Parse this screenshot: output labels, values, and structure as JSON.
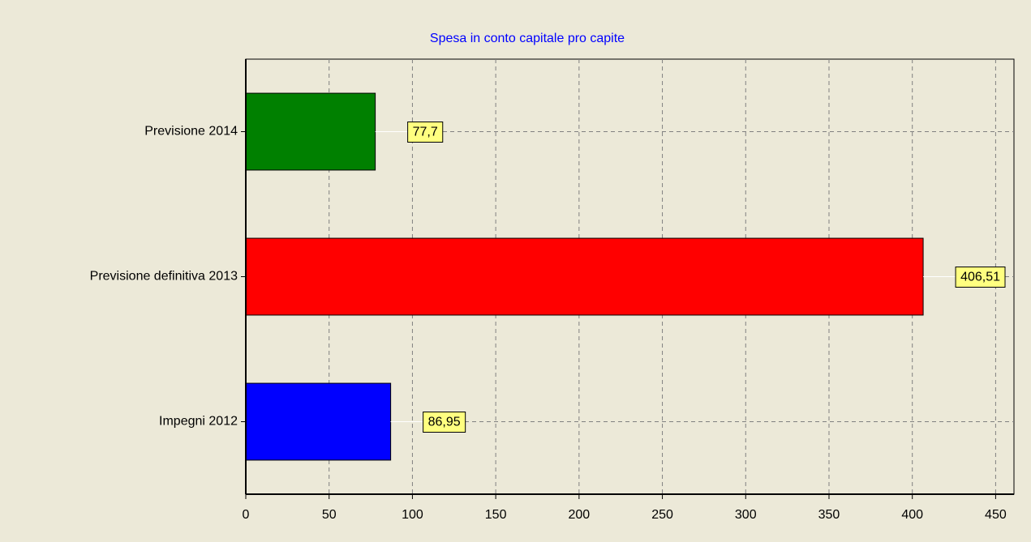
{
  "chart_data": {
    "type": "barh",
    "title": "Spesa in conto capitale pro capite",
    "categories": [
      "Previsione 2014",
      "Previsione definitiva 2013",
      "Impegni 2012"
    ],
    "values": [
      77.7,
      406.51,
      86.95
    ],
    "value_labels": [
      "77,7",
      "406,51",
      "86,95"
    ],
    "colors": [
      "#008000",
      "#ff0000",
      "#0000ff"
    ],
    "xlim": [
      0,
      461
    ],
    "xticks": [
      0,
      50,
      100,
      150,
      200,
      250,
      300,
      350,
      400,
      450
    ],
    "grid": true
  }
}
